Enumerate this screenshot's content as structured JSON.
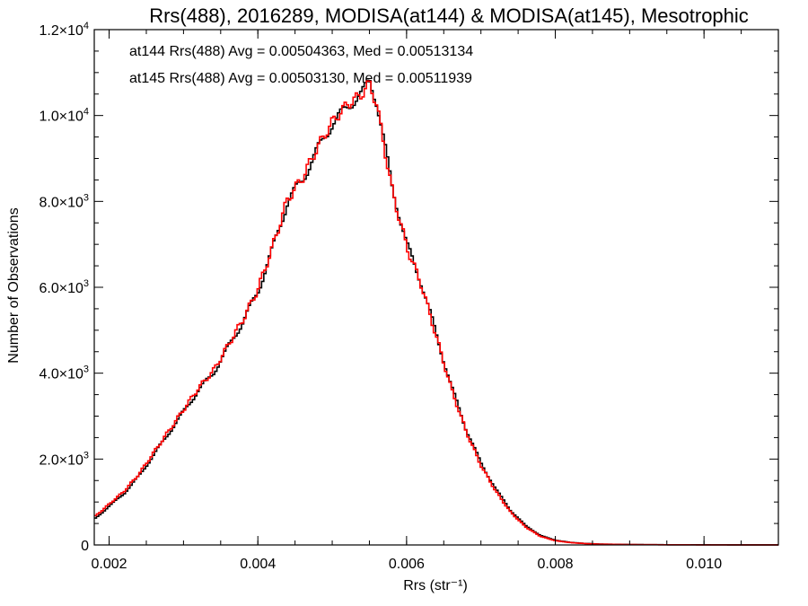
{
  "chart_data": {
    "type": "line",
    "title": "Rrs(488), 2016289, MODISA(at144) & MODISA(at145), Mesotrophic",
    "xlabel": "Rrs (str⁻¹)",
    "ylabel": "Number of Observations",
    "xlim": [
      0.0018,
      0.011
    ],
    "ylim": [
      0,
      12000
    ],
    "x_ticks": [
      {
        "value": 0.002,
        "label": "0.002"
      },
      {
        "value": 0.004,
        "label": "0.004"
      },
      {
        "value": 0.006,
        "label": "0.006"
      },
      {
        "value": 0.008,
        "label": "0.008"
      },
      {
        "value": 0.01,
        "label": "0.010"
      }
    ],
    "y_ticks": [
      {
        "value": 0,
        "label": "0",
        "exp": ""
      },
      {
        "value": 2000,
        "label": "2.0×10",
        "exp": "3"
      },
      {
        "value": 4000,
        "label": "4.0×10",
        "exp": "3"
      },
      {
        "value": 6000,
        "label": "6.0×10",
        "exp": "3"
      },
      {
        "value": 8000,
        "label": "8.0×10",
        "exp": "3"
      },
      {
        "value": 10000,
        "label": "1.0×10",
        "exp": "4"
      },
      {
        "value": 12000,
        "label": "1.2×10",
        "exp": "4"
      }
    ],
    "grid": false,
    "legend_position": "top-left",
    "annotations": [
      {
        "text": "at144 Rrs(488) Avg = 0.00504363, Med = 0.00513134",
        "color": "#000000"
      },
      {
        "text": "at145 Rrs(488) Avg = 0.00503130, Med = 0.00511939",
        "color": "#ff0000"
      }
    ],
    "series": [
      {
        "color": "#000000",
        "x": [
          0.0018,
          0.002,
          0.0022,
          0.0024,
          0.0026,
          0.0028,
          0.003,
          0.0032,
          0.0034,
          0.0036,
          0.0038,
          0.004,
          0.0042,
          0.0044,
          0.0046,
          0.0048,
          0.005,
          0.0052,
          0.0054,
          0.0055,
          0.0056,
          0.0058,
          0.006,
          0.0062,
          0.0064,
          0.0066,
          0.0068,
          0.007,
          0.0072,
          0.0074,
          0.0076,
          0.0078,
          0.008,
          0.0082,
          0.0084,
          0.0086,
          0.0088,
          0.009,
          0.0095,
          0.01,
          0.0105,
          0.011
        ],
        "y": [
          600,
          900,
          1200,
          1600,
          2100,
          2600,
          3100,
          3600,
          4000,
          4600,
          5200,
          5900,
          6900,
          8000,
          8500,
          9200,
          9800,
          10200,
          10500,
          10850,
          10300,
          8400,
          7000,
          6100,
          4900,
          3700,
          2700,
          1900,
          1300,
          800,
          450,
          220,
          110,
          60,
          35,
          20,
          15,
          10,
          5,
          3,
          2,
          1
        ]
      },
      {
        "color": "#ff0000",
        "x": [
          0.0018,
          0.002,
          0.0022,
          0.0024,
          0.0026,
          0.0028,
          0.003,
          0.0032,
          0.0034,
          0.0036,
          0.0038,
          0.004,
          0.0042,
          0.0044,
          0.0046,
          0.0048,
          0.005,
          0.0052,
          0.0054,
          0.0055,
          0.0056,
          0.0058,
          0.006,
          0.0062,
          0.0064,
          0.0066,
          0.0068,
          0.007,
          0.0072,
          0.0074,
          0.0076,
          0.0078,
          0.008,
          0.0082,
          0.0084,
          0.0086,
          0.0088,
          0.009,
          0.0095,
          0.01,
          0.0105,
          0.011
        ],
        "y": [
          650,
          950,
          1250,
          1650,
          2150,
          2650,
          3150,
          3650,
          4050,
          4650,
          5250,
          5950,
          6950,
          8050,
          8550,
          9250,
          9850,
          10250,
          10500,
          10750,
          10250,
          8300,
          6950,
          6050,
          4850,
          3650,
          2650,
          1850,
          1250,
          760,
          420,
          200,
          100,
          55,
          32,
          18,
          13,
          9,
          4,
          2,
          1,
          1
        ]
      }
    ]
  }
}
